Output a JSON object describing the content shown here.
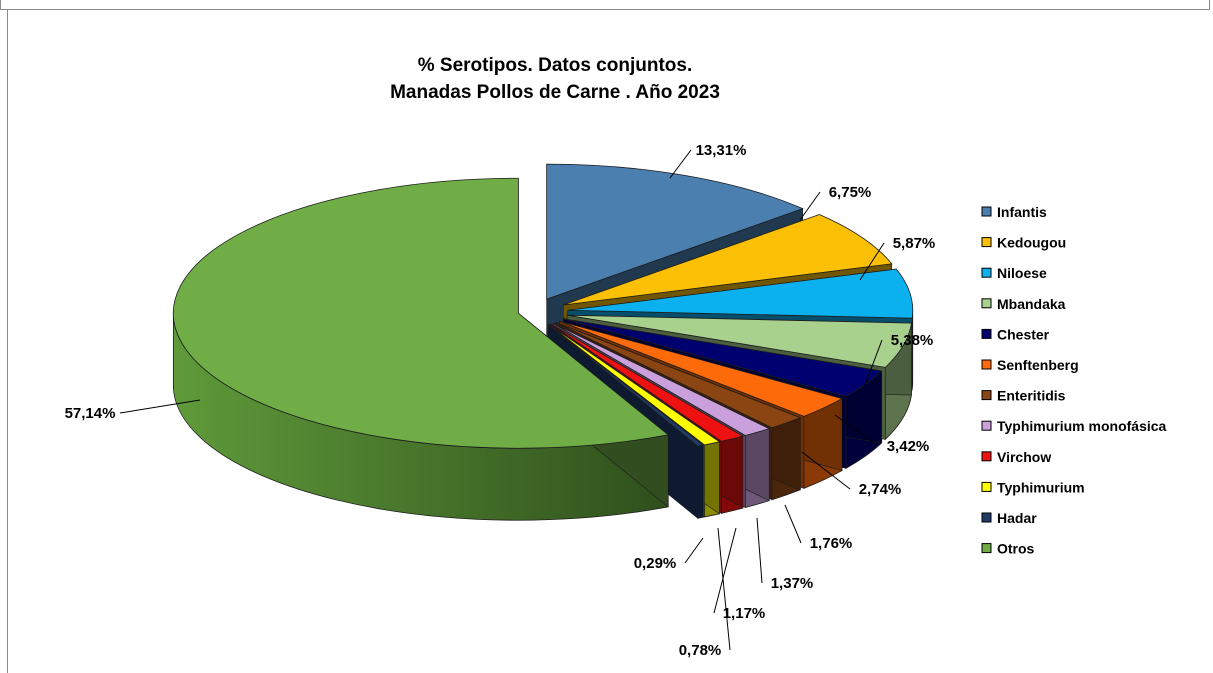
{
  "chart_data": {
    "type": "pie",
    "title_lines": [
      "% Serotipos. Datos conjuntos.",
      "Manadas Pollos de Carne . Año 2023"
    ],
    "legend_position": "right",
    "slices": [
      {
        "name": "Infantis",
        "value": 13.31,
        "label": "13,31%",
        "color": "#4a7fb0"
      },
      {
        "name": "Kedougou",
        "value": 6.75,
        "label": "6,75%",
        "color": "#fbc003"
      },
      {
        "name": "Niloese",
        "value": 5.87,
        "label": "5,87%",
        "color": "#0bb0ef"
      },
      {
        "name": "Mbandaka",
        "value": 5.38,
        "label": "5,38%",
        "color": "#a9d18e"
      },
      {
        "name": "Chester",
        "value": 3.42,
        "label": "3,42%",
        "color": "#00006e"
      },
      {
        "name": "Senftenberg",
        "value": 2.74,
        "label": "2,74%",
        "color": "#fd6a0a"
      },
      {
        "name": "Enteritidis",
        "value": 1.76,
        "label": "1,76%",
        "color": "#8b4513"
      },
      {
        "name": "Typhimurium monofásica",
        "value": 1.37,
        "label": "1,37%",
        "color": "#c9a0dc"
      },
      {
        "name": "Virchow",
        "value": 1.17,
        "label": "1,17%",
        "color": "#ee1111"
      },
      {
        "name": "Typhimurium",
        "value": 0.78,
        "label": "0,78%",
        "color": "#ffff00"
      },
      {
        "name": "Hadar",
        "value": 0.29,
        "label": "0,29%",
        "color": "#1f3a68"
      },
      {
        "name": "Otros",
        "value": 57.14,
        "label": "57,14%",
        "color": "#70ad47"
      }
    ]
  }
}
